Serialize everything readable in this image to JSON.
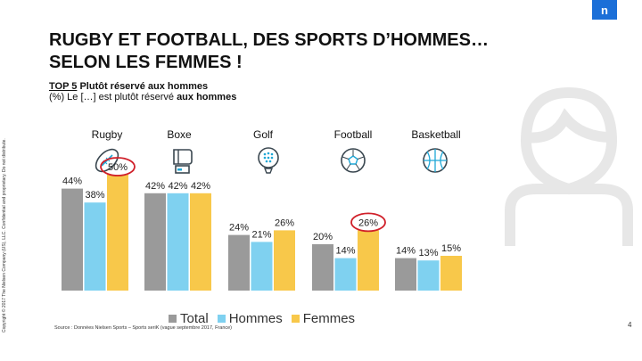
{
  "header": {
    "logo_text": "n",
    "title_line1": "RUGBY ET FOOTBALL, DES SPORTS D’HOMMES…",
    "title_line2": "SELON LES FEMMES !",
    "subtitle_top": "TOP 5",
    "subtitle_bold": "Plutôt réservé aux hommes",
    "subtitle_line2_prefix": "(%) Le […] est plutôt réservé ",
    "subtitle_line2_bold": "aux hommes"
  },
  "side_text": "Copyright © 2017 The Nielsen Company (US), LLC. Confidential and proprietary. Do not distribute.",
  "icons": [
    "rugby-ball-icon",
    "boxing-glove-icon",
    "golf-ball-icon",
    "soccer-ball-icon",
    "basketball-icon",
    "person-silhouette-icon"
  ],
  "colors": {
    "total": "#9a9a9a",
    "hommes": "#7fd1f0",
    "femmes": "#f8c84a",
    "highlight_circle": "#d0202a",
    "logo": "#1b6fd8"
  },
  "chart_data": {
    "type": "bar",
    "categories": [
      "Rugby",
      "Boxe",
      "Golf",
      "Football",
      "Basketball"
    ],
    "series": [
      {
        "name": "Total",
        "values": [
          44,
          42,
          24,
          20,
          14
        ]
      },
      {
        "name": "Hommes",
        "values": [
          38,
          42,
          21,
          14,
          13
        ]
      },
      {
        "name": "Femmes",
        "values": [
          50,
          42,
          26,
          26,
          15
        ]
      }
    ],
    "data_labels": [
      [
        "44%",
        "38%",
        "50%"
      ],
      [
        "42%",
        "42%",
        "42%"
      ],
      [
        "24%",
        "21%",
        "26%"
      ],
      [
        "20%",
        "14%",
        "26%"
      ],
      [
        "14%",
        "13%",
        "15%"
      ]
    ],
    "highlighted": [
      {
        "category": "Rugby",
        "series": "Femmes"
      },
      {
        "category": "Football",
        "series": "Femmes"
      }
    ],
    "ylim": [
      0,
      55
    ],
    "legend_position": "bottom-center",
    "grid": false
  },
  "legend": [
    "Total",
    "Hommes",
    "Femmes"
  ],
  "source": "Source : Données Nielsen Sports – Sports seriK (vague septembre 2017, France)",
  "page_number": "4"
}
